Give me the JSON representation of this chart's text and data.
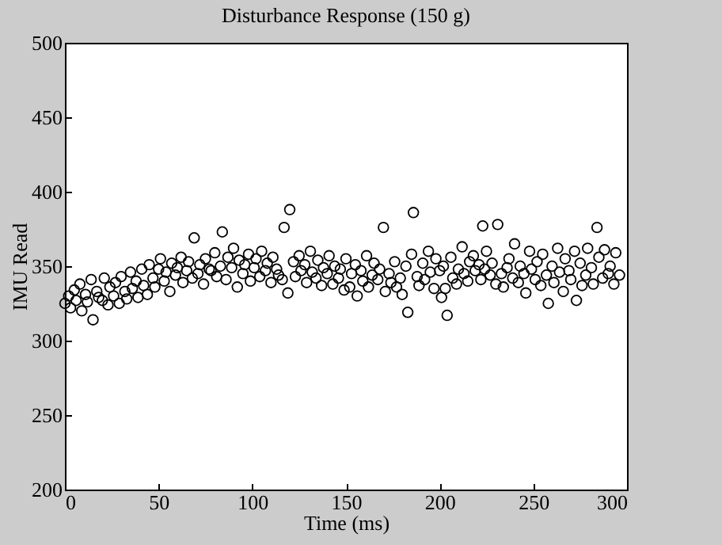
{
  "chart_data": {
    "type": "scatter",
    "title": "Disturbance Response (150 g)",
    "xlabel": "Time (ms)",
    "ylabel": "IMU Read",
    "marker": "circle",
    "grid": false,
    "x": [
      0,
      2,
      3,
      5,
      6,
      8,
      9,
      11,
      12,
      14,
      15,
      17,
      18,
      20,
      21,
      23,
      24,
      26,
      27,
      29,
      30,
      32,
      33,
      35,
      36,
      38,
      39,
      41,
      42,
      44,
      45,
      47,
      48,
      50,
      51,
      53,
      54,
      56,
      57,
      59,
      60,
      62,
      63,
      65,
      66,
      68,
      69,
      71,
      72,
      74,
      75,
      77,
      78,
      80,
      81,
      83,
      84,
      86,
      87,
      89,
      90,
      92,
      93,
      95,
      96,
      98,
      99,
      101,
      102,
      104,
      105,
      107,
      108,
      110,
      111,
      113,
      114,
      116,
      117,
      119,
      120,
      122,
      123,
      125,
      126,
      128,
      129,
      131,
      132,
      134,
      135,
      137,
      138,
      140,
      141,
      143,
      144,
      146,
      147,
      149,
      150,
      152,
      153,
      155,
      156,
      158,
      159,
      161,
      162,
      164,
      165,
      167,
      168,
      170,
      171,
      173,
      174,
      176,
      177,
      179,
      180,
      182,
      183,
      185,
      186,
      188,
      189,
      191,
      192,
      194,
      195,
      197,
      198,
      200,
      201,
      202,
      203,
      204,
      206,
      207,
      209,
      210,
      212,
      213,
      215,
      216,
      218,
      219,
      221,
      222,
      223,
      224,
      225,
      227,
      228,
      230,
      231,
      233,
      234,
      236,
      237,
      239,
      240,
      242,
      243,
      245,
      246,
      248,
      249,
      251,
      252,
      254,
      255,
      257,
      258,
      260,
      261,
      263,
      264,
      266,
      267,
      269,
      270,
      272,
      273,
      275,
      276,
      278,
      279,
      281,
      282,
      284,
      285,
      287,
      288,
      290,
      291,
      293,
      294,
      296
    ],
    "values": [
      325,
      330,
      322,
      334,
      327,
      338,
      320,
      331,
      326,
      341,
      314,
      333,
      329,
      327,
      342,
      324,
      336,
      330,
      339,
      325,
      343,
      333,
      328,
      346,
      335,
      340,
      329,
      348,
      337,
      331,
      351,
      342,
      336,
      348,
      355,
      340,
      346,
      333,
      352,
      344,
      349,
      356,
      339,
      347,
      353,
      342,
      369,
      345,
      351,
      338,
      355,
      348,
      347,
      359,
      343,
      350,
      373,
      341,
      356,
      349,
      362,
      336,
      354,
      345,
      351,
      358,
      340,
      349,
      355,
      343,
      360,
      347,
      352,
      339,
      356,
      348,
      344,
      341,
      376,
      332,
      388,
      353,
      343,
      357,
      347,
      351,
      339,
      360,
      346,
      342,
      354,
      337,
      349,
      345,
      357,
      338,
      350,
      342,
      348,
      334,
      355,
      336,
      345,
      351,
      330,
      347,
      340,
      357,
      336,
      344,
      352,
      341,
      348,
      376,
      333,
      345,
      339,
      353,
      336,
      342,
      331,
      350,
      319,
      358,
      386,
      343,
      337,
      352,
      341,
      360,
      346,
      335,
      355,
      347,
      329,
      350,
      335,
      317,
      356,
      342,
      338,
      348,
      363,
      345,
      340,
      353,
      357,
      347,
      351,
      341,
      377,
      348,
      360,
      344,
      352,
      338,
      378,
      345,
      336,
      349,
      355,
      342,
      365,
      339,
      350,
      345,
      332,
      360,
      348,
      341,
      353,
      337,
      358,
      344,
      325,
      350,
      339,
      362,
      346,
      333,
      355,
      347,
      341,
      360,
      327,
      352,
      337,
      344,
      362,
      349,
      338,
      376,
      356,
      342,
      361,
      345,
      350,
      338,
      359,
      344
    ],
    "xlim": [
      0,
      300
    ],
    "xticks": [
      0,
      50,
      100,
      150,
      200,
      250,
      300
    ],
    "ylim": [
      200,
      500
    ],
    "yticks": [
      200,
      250,
      300,
      350,
      400,
      450,
      500
    ]
  }
}
